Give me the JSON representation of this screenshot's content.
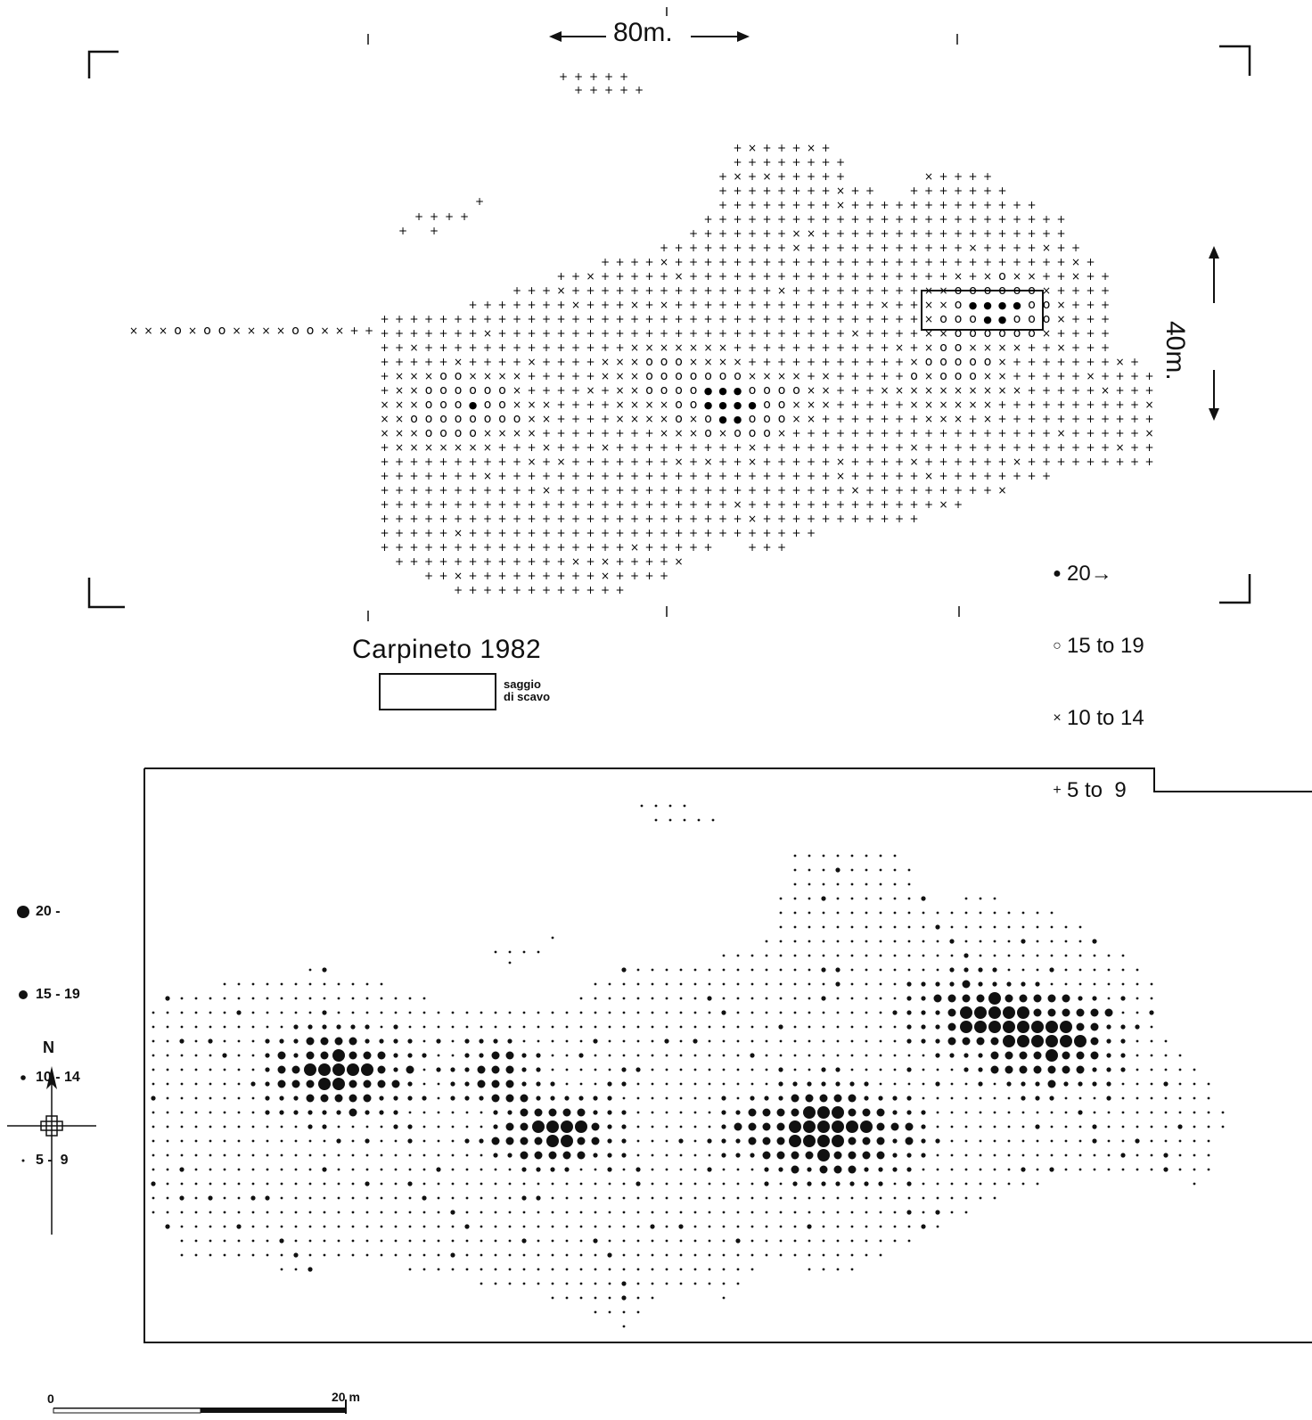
{
  "map_top": {
    "title": "Carpineto 1982",
    "scale_horizontal": "80m.",
    "scale_vertical": "40m.",
    "excavation_box_label": "saggio\ndi scavo",
    "legend": [
      {
        "symbol": "filled-dot",
        "label": "20→"
      },
      {
        "symbol": "open-circle",
        "label": "15 to 19"
      },
      {
        "symbol": "cross-x",
        "label": "10 to 14"
      },
      {
        "symbol": "plus",
        "label": "5 to  9"
      }
    ],
    "classes": [
      "5-9",
      "10-14",
      "15-19",
      "20+"
    ]
  },
  "map_bottom": {
    "legend": [
      {
        "symbol": "dot-xl",
        "label": "20 -"
      },
      {
        "symbol": "dot-l",
        "label": "15 - 19"
      },
      {
        "symbol": "dot-m",
        "label": "10 - 14"
      },
      {
        "symbol": "dot-s",
        "label": "5 -  9"
      }
    ],
    "north_label": "N",
    "scale_start": "0",
    "scale_end": "20 m"
  },
  "colors": {
    "ink": "#111111",
    "paper": "#ffffff"
  }
}
